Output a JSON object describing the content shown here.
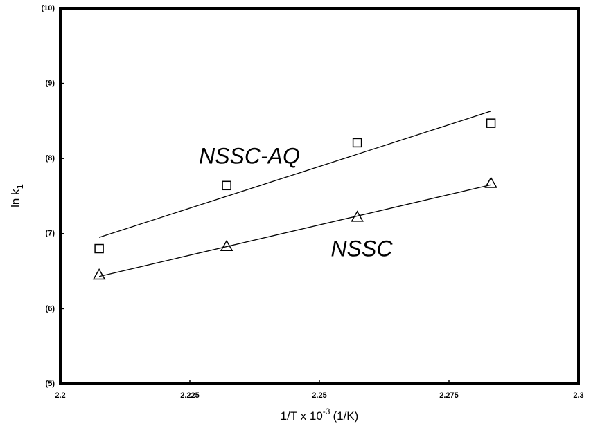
{
  "chart_data": {
    "type": "scatter",
    "xlabel": {
      "text": "1/T x 10",
      "sup": "-3",
      "unit": "(1/K)"
    },
    "ylabel": {
      "text": "ln k",
      "sub": "1"
    },
    "x": [
      2.2075,
      2.2321,
      2.2573,
      2.2831
    ],
    "fit_x": [
      2.2075,
      2.2831
    ],
    "series": [
      {
        "name": "NSSC-AQ",
        "marker": "square",
        "color": "#000000",
        "values": [
          6.8,
          7.64,
          8.21,
          8.47
        ],
        "fit": [
          6.95,
          8.63
        ]
      },
      {
        "name": "NSSC",
        "marker": "triangle",
        "color": "#000000",
        "values": [
          6.45,
          6.83,
          7.22,
          7.67
        ],
        "fit": [
          6.43,
          7.65
        ]
      }
    ],
    "xlim": [
      2.2,
      2.3
    ],
    "ylim": [
      5,
      10
    ],
    "xticks": [
      2.2,
      2.225,
      2.25,
      2.275,
      2.3
    ],
    "yticks": [
      {
        "value": 5,
        "label": "(5)"
      },
      {
        "value": 6,
        "label": "(6)"
      },
      {
        "value": 7,
        "label": "(7)"
      },
      {
        "value": 8,
        "label": "(8)"
      },
      {
        "value": 9,
        "label": "(9)"
      },
      {
        "value": 10,
        "label": "(10)"
      }
    ],
    "grid": false
  }
}
